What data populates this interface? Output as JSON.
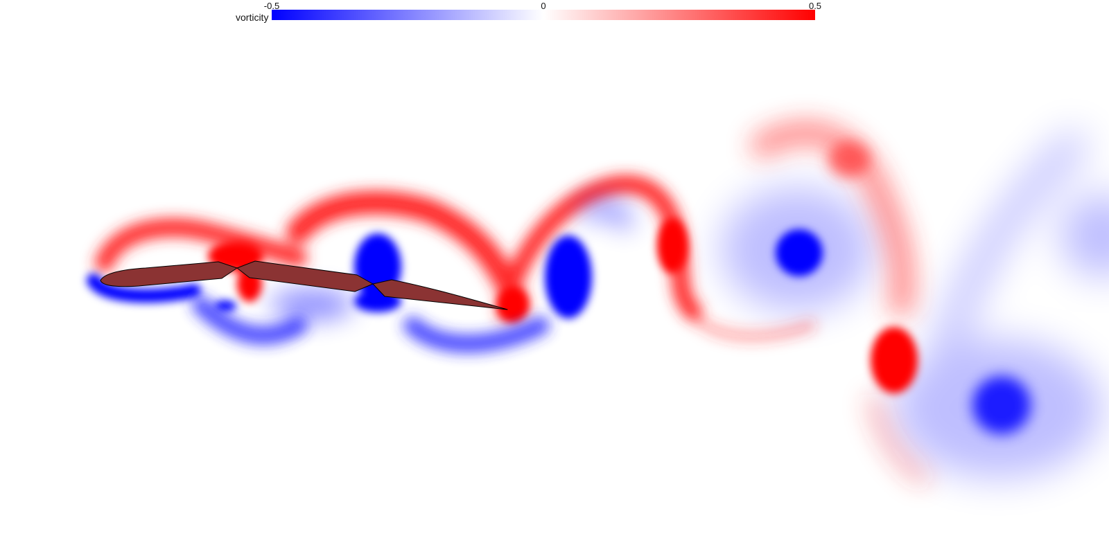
{
  "colorbar": {
    "title": "vorticity",
    "min_label": "-0.5",
    "mid_label": "0",
    "max_label": "0.5",
    "min_color": "#0000ff",
    "mid_color": "#ffffff",
    "max_color": "#ff0000"
  },
  "scene": {
    "foil_color": "#8b3333",
    "foil_outline": "#000000",
    "background": "#ffffff",
    "foil_segments": 3
  }
}
